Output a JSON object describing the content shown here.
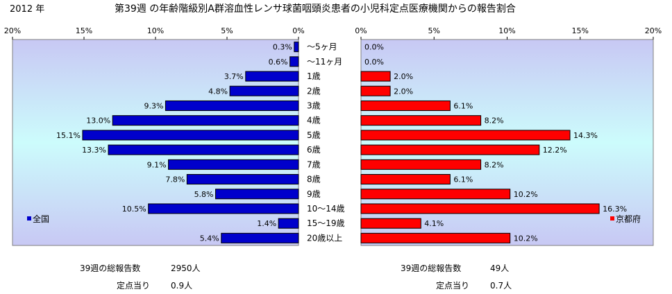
{
  "header": {
    "year": "2012 年",
    "title": "第39週 の年齢階級別A群溶血性レンサ球菌咽頭炎患者の小児科定点医療機関からの報告割合"
  },
  "chart_data": {
    "type": "bar",
    "orientation": "horizontal",
    "categories": [
      "～5ヶ月",
      "～11ヶ月",
      "1歳",
      "2歳",
      "3歳",
      "4歳",
      "5歳",
      "6歳",
      "7歳",
      "8歳",
      "9歳",
      "10～14歳",
      "15～19歳",
      "20歳以上"
    ],
    "series": [
      {
        "name": "全国",
        "color": "#0000cc",
        "values": [
          0.3,
          0.6,
          3.7,
          4.8,
          9.3,
          13.0,
          15.1,
          13.3,
          9.1,
          7.8,
          5.8,
          10.5,
          1.4,
          5.4
        ],
        "labels": [
          "0.3%",
          "0.6%",
          "3.7%",
          "4.8%",
          "9.3%",
          "13.0%",
          "15.1%",
          "13.3%",
          "9.1%",
          "7.8%",
          "5.8%",
          "10.5%",
          "1.4%",
          "5.4%"
        ]
      },
      {
        "name": "京都府",
        "color": "#ff0000",
        "values": [
          0.0,
          0.0,
          2.0,
          2.0,
          6.1,
          8.2,
          14.3,
          12.2,
          8.2,
          6.1,
          10.2,
          16.3,
          4.1,
          10.2
        ],
        "labels": [
          "0.0%",
          "0.0%",
          "2.0%",
          "2.0%",
          "6.1%",
          "8.2%",
          "14.3%",
          "12.2%",
          "8.2%",
          "6.1%",
          "10.2%",
          "16.3%",
          "4.1%",
          "10.2%"
        ]
      }
    ],
    "xlim": [
      0,
      20
    ],
    "left_ticks": [
      "20%",
      "15%",
      "10%",
      "5%",
      "0%"
    ],
    "right_ticks": [
      "0%",
      "5%",
      "10%",
      "15%",
      "20%"
    ],
    "grid": true,
    "legend_position": "bottom-left / bottom-right"
  },
  "footer": {
    "national_total_label": "39週の総報告数",
    "national_total_value": "2950人",
    "national_per_label": "定点当り",
    "national_per_value": "0.9人",
    "kyoto_total_label": "39週の総報告数",
    "kyoto_total_value": "49人",
    "kyoto_per_label": "定点当り",
    "kyoto_per_value": "0.7人"
  }
}
